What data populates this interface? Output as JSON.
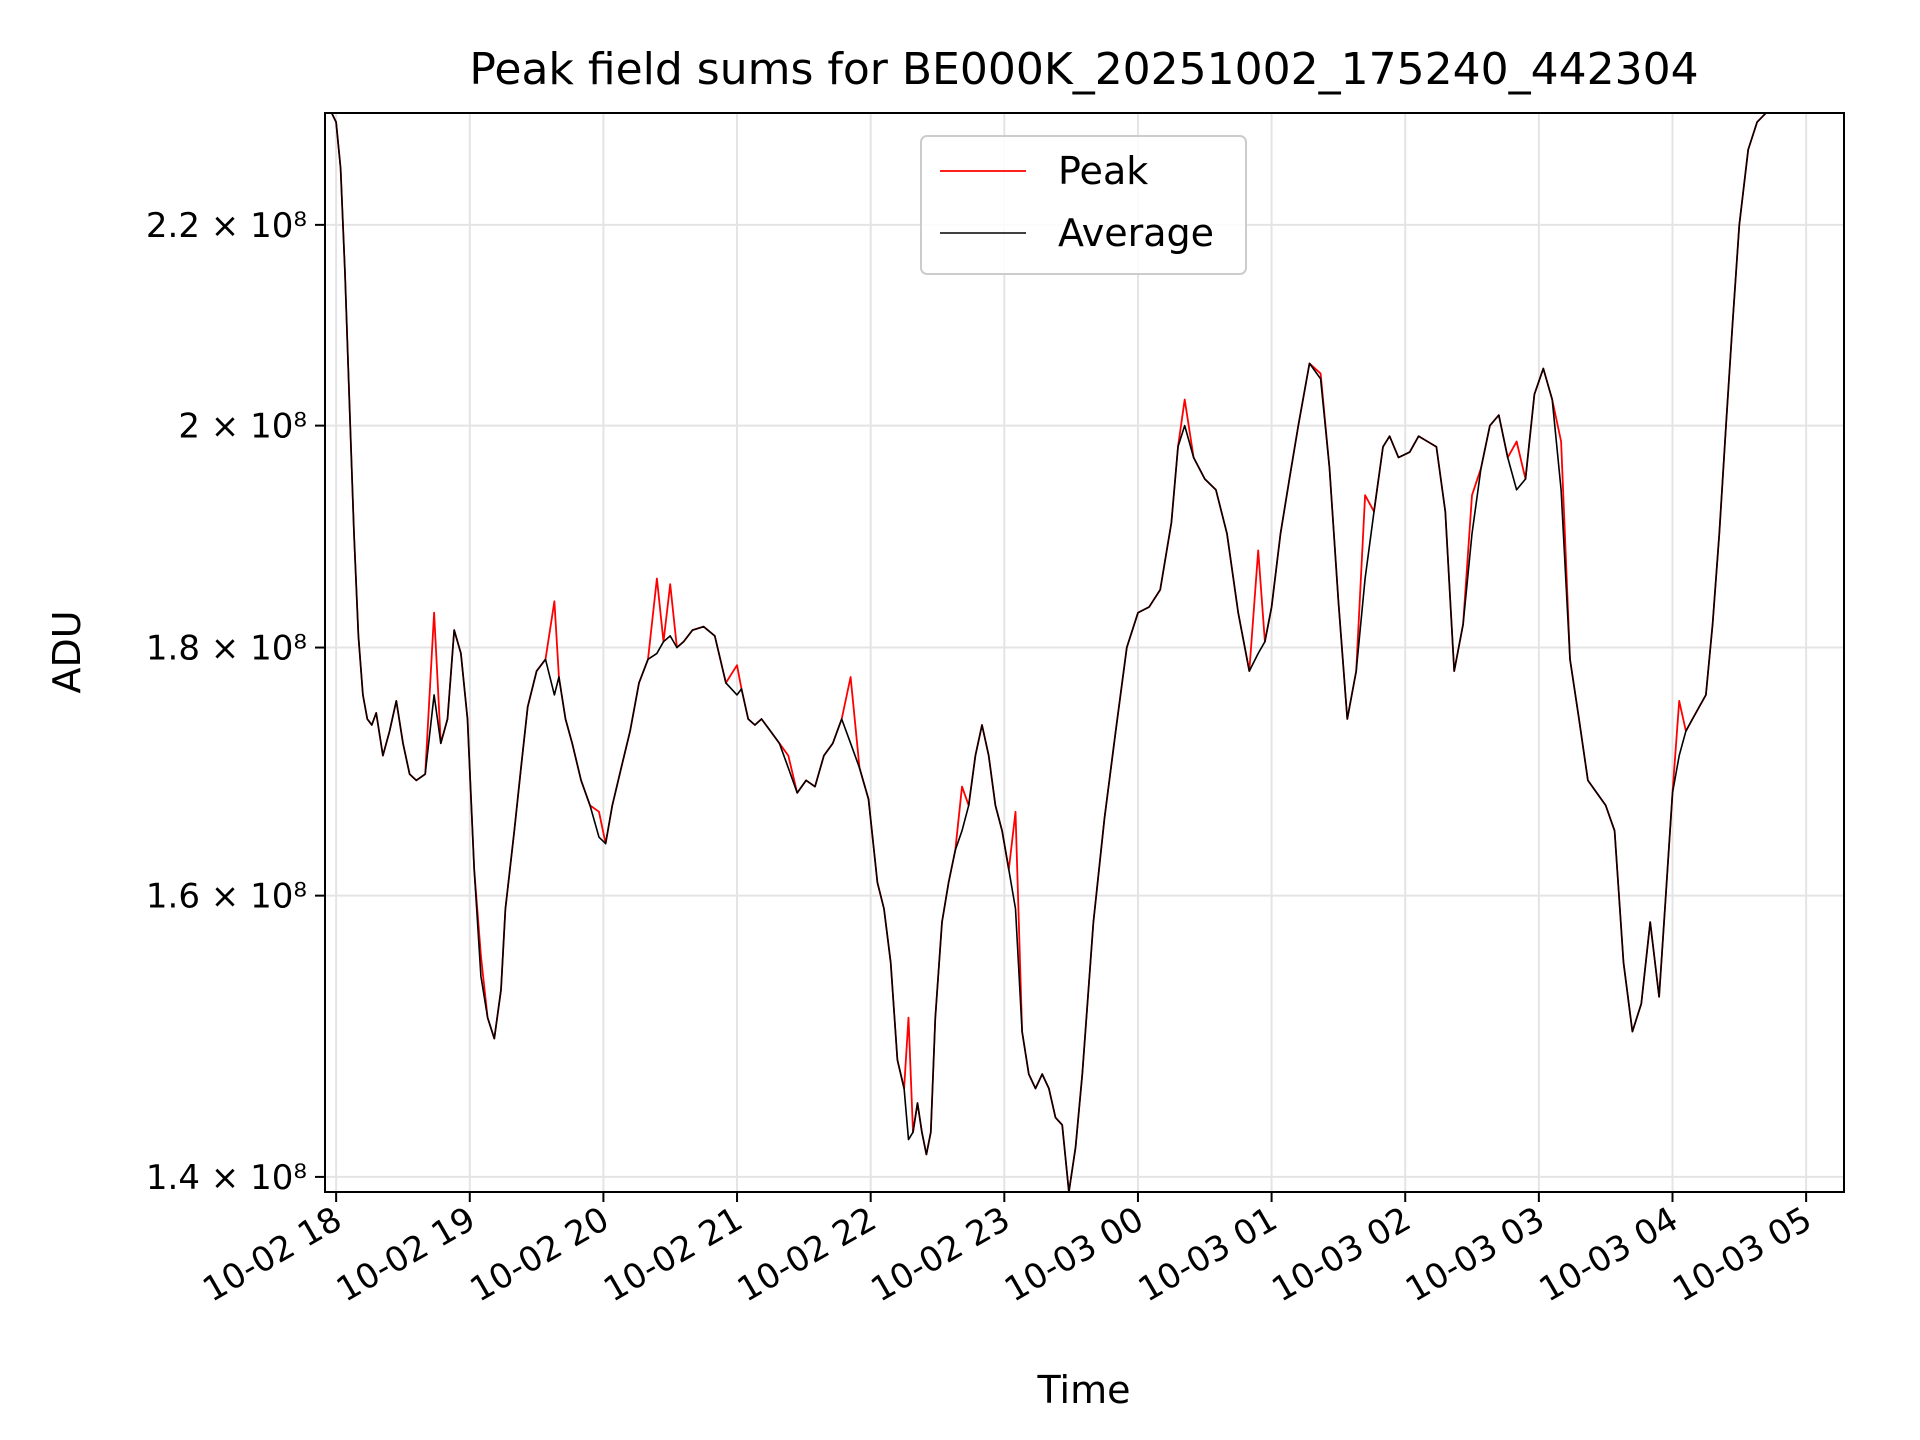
{
  "chart_data": {
    "type": "line",
    "title": "Peak field sums for BE000K_20251002_175240_442304",
    "xlabel": "Time",
    "ylabel": "ADU",
    "yscale": "log",
    "ylim": [
      139000000,
      232000000
    ],
    "xlim": [
      "2025-10-02 17:55",
      "2025-10-03 05:17"
    ],
    "grid": true,
    "legend_position": "top-center",
    "x_ticks": [
      {
        "label": "10-02 18",
        "t": "2025-10-02 18:00"
      },
      {
        "label": "10-02 19",
        "t": "2025-10-02 19:00"
      },
      {
        "label": "10-02 20",
        "t": "2025-10-02 20:00"
      },
      {
        "label": "10-02 21",
        "t": "2025-10-02 21:00"
      },
      {
        "label": "10-02 22",
        "t": "2025-10-02 22:00"
      },
      {
        "label": "10-02 23",
        "t": "2025-10-02 23:00"
      },
      {
        "label": "10-03 00",
        "t": "2025-10-03 00:00"
      },
      {
        "label": "10-03 01",
        "t": "2025-10-03 01:00"
      },
      {
        "label": "10-03 02",
        "t": "2025-10-03 02:00"
      },
      {
        "label": "10-03 03",
        "t": "2025-10-03 03:00"
      },
      {
        "label": "10-03 04",
        "t": "2025-10-03 04:00"
      },
      {
        "label": "10-03 05",
        "t": "2025-10-03 05:00"
      }
    ],
    "y_ticks": [
      {
        "value": 140000000,
        "label": "1.4 × 10⁸"
      },
      {
        "value": 160000000,
        "label": "1.6 × 10⁸"
      },
      {
        "value": 180000000,
        "label": "1.8 × 10⁸"
      },
      {
        "value": 200000000,
        "label": "2 × 10⁸"
      },
      {
        "value": 220000000,
        "label": "2.2 × 10⁸"
      }
    ],
    "series": [
      {
        "name": "Peak",
        "color": "#ff0000"
      },
      {
        "name": "Average",
        "color": "#000000"
      }
    ],
    "x": [
      "2025-10-02 17:55",
      "2025-10-02 17:58",
      "2025-10-02 18:00",
      "2025-10-02 18:02",
      "2025-10-02 18:04",
      "2025-10-02 18:06",
      "2025-10-02 18:08",
      "2025-10-02 18:10",
      "2025-10-02 18:12",
      "2025-10-02 18:14",
      "2025-10-02 18:16",
      "2025-10-02 18:18",
      "2025-10-02 18:21",
      "2025-10-02 18:24",
      "2025-10-02 18:27",
      "2025-10-02 18:30",
      "2025-10-02 18:33",
      "2025-10-02 18:36",
      "2025-10-02 18:40",
      "2025-10-02 18:44",
      "2025-10-02 18:47",
      "2025-10-02 18:50",
      "2025-10-02 18:53",
      "2025-10-02 18:56",
      "2025-10-02 18:59",
      "2025-10-02 19:02",
      "2025-10-02 19:05",
      "2025-10-02 19:08",
      "2025-10-02 19:11",
      "2025-10-02 19:14",
      "2025-10-02 19:16",
      "2025-10-02 19:18",
      "2025-10-02 19:20",
      "2025-10-02 19:23",
      "2025-10-02 19:26",
      "2025-10-02 19:30",
      "2025-10-02 19:34",
      "2025-10-02 19:38",
      "2025-10-02 19:40",
      "2025-10-02 19:43",
      "2025-10-02 19:46",
      "2025-10-02 19:50",
      "2025-10-02 19:54",
      "2025-10-02 19:58",
      "2025-10-02 20:01",
      "2025-10-02 20:04",
      "2025-10-02 20:08",
      "2025-10-02 20:12",
      "2025-10-02 20:16",
      "2025-10-02 20:20",
      "2025-10-02 20:24",
      "2025-10-02 20:27",
      "2025-10-02 20:30",
      "2025-10-02 20:33",
      "2025-10-02 20:36",
      "2025-10-02 20:40",
      "2025-10-02 20:45",
      "2025-10-02 20:50",
      "2025-10-02 20:55",
      "2025-10-02 21:00",
      "2025-10-02 21:02",
      "2025-10-02 21:05",
      "2025-10-02 21:08",
      "2025-10-02 21:11",
      "2025-10-02 21:15",
      "2025-10-02 21:19",
      "2025-10-02 21:23",
      "2025-10-02 21:27",
      "2025-10-02 21:31",
      "2025-10-02 21:35",
      "2025-10-02 21:39",
      "2025-10-02 21:43",
      "2025-10-02 21:47",
      "2025-10-02 21:51",
      "2025-10-02 21:55",
      "2025-10-02 21:59",
      "2025-10-02 22:03",
      "2025-10-02 22:06",
      "2025-10-02 22:09",
      "2025-10-02 22:12",
      "2025-10-02 22:15",
      "2025-10-02 22:17",
      "2025-10-02 22:19",
      "2025-10-02 22:21",
      "2025-10-02 22:23",
      "2025-10-02 22:25",
      "2025-10-02 22:27",
      "2025-10-02 22:29",
      "2025-10-02 22:32",
      "2025-10-02 22:35",
      "2025-10-02 22:38",
      "2025-10-02 22:41",
      "2025-10-02 22:44",
      "2025-10-02 22:47",
      "2025-10-02 22:50",
      "2025-10-02 22:53",
      "2025-10-02 22:56",
      "2025-10-02 22:59",
      "2025-10-02 23:02",
      "2025-10-02 23:05",
      "2025-10-02 23:08",
      "2025-10-02 23:11",
      "2025-10-02 23:14",
      "2025-10-02 23:17",
      "2025-10-02 23:20",
      "2025-10-02 23:23",
      "2025-10-02 23:26",
      "2025-10-02 23:29",
      "2025-10-02 23:32",
      "2025-10-02 23:35",
      "2025-10-02 23:40",
      "2025-10-02 23:45",
      "2025-10-02 23:50",
      "2025-10-02 23:55",
      "2025-10-03 00:00",
      "2025-10-03 00:05",
      "2025-10-03 00:10",
      "2025-10-03 00:15",
      "2025-10-03 00:18",
      "2025-10-03 00:21",
      "2025-10-03 00:25",
      "2025-10-03 00:30",
      "2025-10-03 00:35",
      "2025-10-03 00:40",
      "2025-10-03 00:45",
      "2025-10-03 00:50",
      "2025-10-03 00:54",
      "2025-10-03 00:57",
      "2025-10-03 01:00",
      "2025-10-03 01:04",
      "2025-10-03 01:08",
      "2025-10-03 01:12",
      "2025-10-03 01:17",
      "2025-10-03 01:22",
      "2025-10-03 01:26",
      "2025-10-03 01:30",
      "2025-10-03 01:34",
      "2025-10-03 01:38",
      "2025-10-03 01:42",
      "2025-10-03 01:46",
      "2025-10-03 01:50",
      "2025-10-03 01:53",
      "2025-10-03 01:57",
      "2025-10-03 02:02",
      "2025-10-03 02:06",
      "2025-10-03 02:10",
      "2025-10-03 02:14",
      "2025-10-03 02:18",
      "2025-10-03 02:22",
      "2025-10-03 02:26",
      "2025-10-03 02:30",
      "2025-10-03 02:34",
      "2025-10-03 02:38",
      "2025-10-03 02:42",
      "2025-10-03 02:46",
      "2025-10-03 02:50",
      "2025-10-03 02:54",
      "2025-10-03 02:58",
      "2025-10-03 03:02",
      "2025-10-03 03:06",
      "2025-10-03 03:10",
      "2025-10-03 03:14",
      "2025-10-03 03:18",
      "2025-10-03 03:22",
      "2025-10-03 03:26",
      "2025-10-03 03:30",
      "2025-10-03 03:34",
      "2025-10-03 03:38",
      "2025-10-03 03:42",
      "2025-10-03 03:46",
      "2025-10-03 03:50",
      "2025-10-03 03:54",
      "2025-10-03 03:57",
      "2025-10-03 04:00",
      "2025-10-03 04:03",
      "2025-10-03 04:06",
      "2025-10-03 04:09",
      "2025-10-03 04:12",
      "2025-10-03 04:15",
      "2025-10-03 04:18",
      "2025-10-03 04:21",
      "2025-10-03 04:24",
      "2025-10-03 04:27",
      "2025-10-03 04:30",
      "2025-10-03 04:34",
      "2025-10-03 04:38",
      "2025-10-03 04:42",
      "2025-10-03 04:46",
      "2025-10-03 04:50",
      "2025-10-03 04:54",
      "2025-10-03 04:58",
      "2025-10-03 05:01",
      "2025-10-03 05:04",
      "2025-10-03 05:08",
      "2025-10-03 05:12",
      "2025-10-03 05:17"
    ],
    "average": [
      232000000,
      232000000,
      231000000,
      226000000,
      215000000,
      202000000,
      190000000,
      181000000,
      176000000,
      174000000,
      173500000,
      174500000,
      171000000,
      173000000,
      175500000,
      172000000,
      169500000,
      169000000,
      169500000,
      176000000,
      172000000,
      174000000,
      181500000,
      179500000,
      174000000,
      162000000,
      154000000,
      151000000,
      149500000,
      153000000,
      159000000,
      162000000,
      165000000,
      170000000,
      175000000,
      178000000,
      179000000,
      176000000,
      177500000,
      174000000,
      172000000,
      169000000,
      167000000,
      164500000,
      164000000,
      167000000,
      170000000,
      173000000,
      177000000,
      179000000,
      179500000,
      180500000,
      181000000,
      180000000,
      180500000,
      181500000,
      181800000,
      181000000,
      177000000,
      176000000,
      176500000,
      174000000,
      173500000,
      174000000,
      173000000,
      172000000,
      170000000,
      168000000,
      169000000,
      168500000,
      171000000,
      172000000,
      174000000,
      172000000,
      170000000,
      167500000,
      161000000,
      159000000,
      155000000,
      148000000,
      146000000,
      142500000,
      143000000,
      145000000,
      143000000,
      141500000,
      143000000,
      151000000,
      158000000,
      161000000,
      163500000,
      165000000,
      167000000,
      171000000,
      173500000,
      171000000,
      167000000,
      165000000,
      162000000,
      159000000,
      150000000,
      147000000,
      146000000,
      147000000,
      146000000,
      144000000,
      143500000,
      139000000,
      142000000,
      147000000,
      158000000,
      166000000,
      173000000,
      180000000,
      183000000,
      183500000,
      185000000,
      191000000,
      198000000,
      200000000,
      197000000,
      195000000,
      194000000,
      190000000,
      183000000,
      178000000,
      179500000,
      180500000,
      183500000,
      190000000,
      195000000,
      200000000,
      206000000,
      204500000,
      196000000,
      184000000,
      174000000,
      178000000,
      186000000,
      192000000,
      198000000,
      199000000,
      197000000,
      197500000,
      199000000,
      198500000,
      198000000,
      192000000,
      178000000,
      182000000,
      190000000,
      196000000,
      200000000,
      201000000,
      197000000,
      194000000,
      195000000,
      203000000,
      205500000,
      202500000,
      194000000,
      179000000,
      174000000,
      169000000,
      168000000,
      167000000,
      165000000,
      155000000,
      150000000,
      152000000,
      158000000,
      152500000,
      160000000,
      168000000,
      171000000,
      173000000,
      174000000,
      175000000,
      176000000,
      182000000,
      190000000,
      200000000,
      210000000,
      220000000,
      228000000,
      231000000,
      232000000,
      232000000,
      232000000
    ],
    "peak": [
      232000000,
      232000000,
      231000000,
      226000000,
      215000000,
      202000000,
      190000000,
      181000000,
      176000000,
      174000000,
      173500000,
      174500000,
      171000000,
      173000000,
      175500000,
      172000000,
      169500000,
      169000000,
      169500000,
      183000000,
      172000000,
      174000000,
      181500000,
      179500000,
      174000000,
      162000000,
      155500000,
      151000000,
      149500000,
      153000000,
      159000000,
      162000000,
      165000000,
      170000000,
      175000000,
      178000000,
      179000000,
      184000000,
      177500000,
      174000000,
      172000000,
      169000000,
      167000000,
      166500000,
      164000000,
      167000000,
      170000000,
      173000000,
      177000000,
      179000000,
      186000000,
      180500000,
      185500000,
      180000000,
      180500000,
      181500000,
      181800000,
      181000000,
      177000000,
      178500000,
      176500000,
      174000000,
      173500000,
      174000000,
      173000000,
      172000000,
      171000000,
      168000000,
      169000000,
      168500000,
      171000000,
      172000000,
      174000000,
      177500000,
      170000000,
      167500000,
      161000000,
      159000000,
      155000000,
      148000000,
      146000000,
      151000000,
      143000000,
      145000000,
      143000000,
      141500000,
      143000000,
      151000000,
      158000000,
      161000000,
      163500000,
      168500000,
      167000000,
      171000000,
      173500000,
      171000000,
      167000000,
      165000000,
      162000000,
      166500000,
      150000000,
      147000000,
      146000000,
      147000000,
      146000000,
      144000000,
      143500000,
      139000000,
      142000000,
      147000000,
      158000000,
      166000000,
      173000000,
      180000000,
      183000000,
      183500000,
      185000000,
      191000000,
      198000000,
      202500000,
      197000000,
      195000000,
      194000000,
      190000000,
      183000000,
      178000000,
      188500000,
      180500000,
      183500000,
      190000000,
      195000000,
      200000000,
      206000000,
      205000000,
      196000000,
      184000000,
      174000000,
      178000000,
      193500000,
      192000000,
      198000000,
      199000000,
      197000000,
      197500000,
      199000000,
      198500000,
      198000000,
      192000000,
      178000000,
      182000000,
      193500000,
      196000000,
      200000000,
      201000000,
      197000000,
      198500000,
      195000000,
      203000000,
      205500000,
      202500000,
      198500000,
      179000000,
      174000000,
      169000000,
      168000000,
      167000000,
      165000000,
      155000000,
      150000000,
      152000000,
      158000000,
      152500000,
      160000000,
      168000000,
      175500000,
      173000000,
      174000000,
      175000000,
      176000000,
      182000000,
      190000000,
      200000000,
      210000000,
      220000000,
      228000000,
      231000000,
      232000000,
      232000000,
      232000000
    ]
  }
}
